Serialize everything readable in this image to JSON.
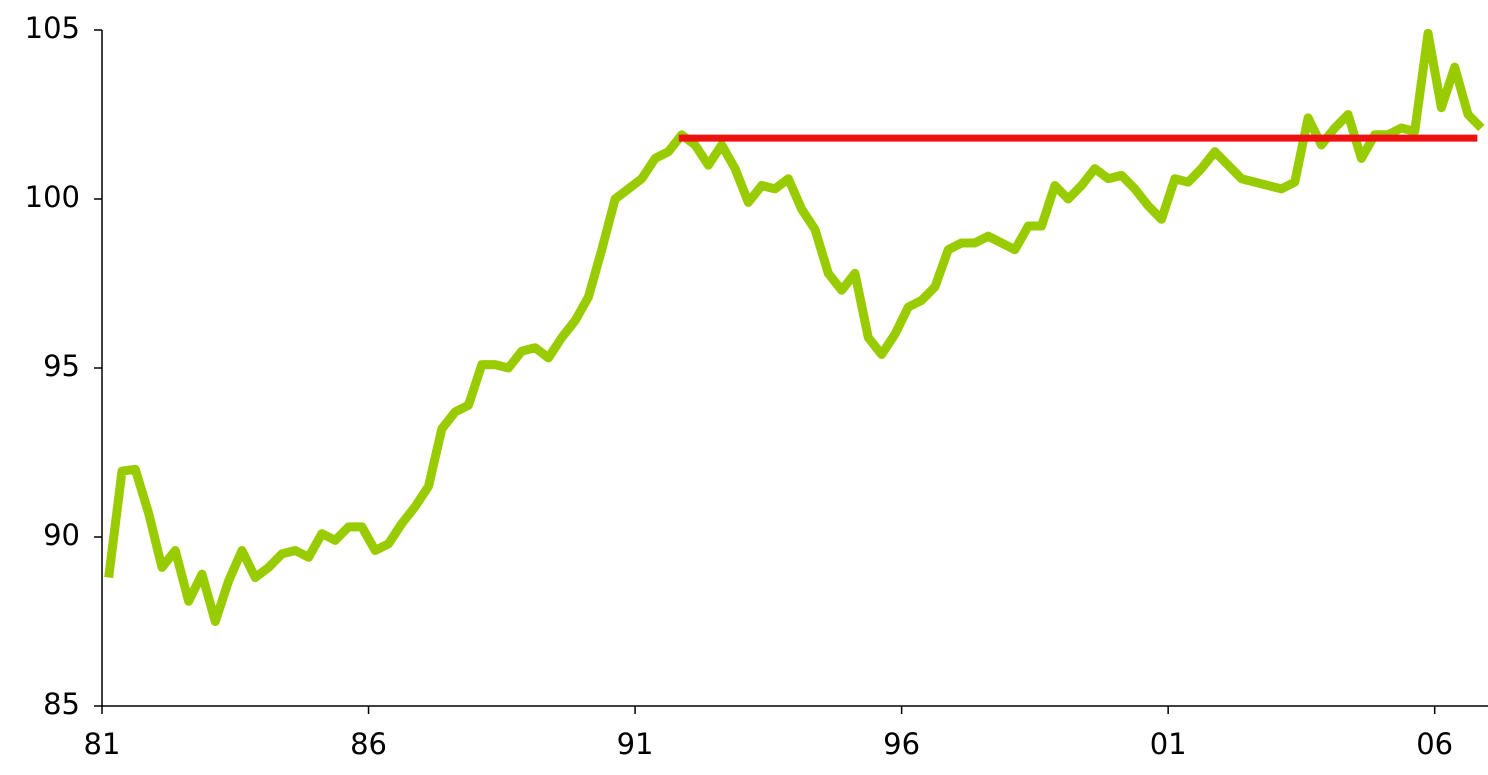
{
  "chart_data": {
    "type": "line",
    "series": [
      {
        "color": "#99cc00",
        "x": [
          81.125,
          81.375,
          81.625,
          81.875,
          82.125,
          82.375,
          82.625,
          82.875,
          83.125,
          83.375,
          83.625,
          83.875,
          84.125,
          84.375,
          84.625,
          84.875,
          85.125,
          85.375,
          85.625,
          85.875,
          86.125,
          86.375,
          86.625,
          86.875,
          87.125,
          87.375,
          87.625,
          87.875,
          88.125,
          88.375,
          88.625,
          88.875,
          89.125,
          89.375,
          89.625,
          89.875,
          90.125,
          90.375,
          90.625,
          90.875,
          91.125,
          91.375,
          91.625,
          91.875,
          92.125,
          92.375,
          92.625,
          92.875,
          93.125,
          93.375,
          93.625,
          93.875,
          94.125,
          94.375,
          94.625,
          94.875,
          95.125,
          95.375,
          95.625,
          95.875,
          96.125,
          96.375,
          96.625,
          96.875,
          97.125,
          97.375,
          97.625,
          97.875,
          98.125,
          98.375,
          98.625,
          98.875,
          99.125,
          99.375,
          99.625,
          99.875,
          100.125,
          100.375,
          100.625,
          100.875,
          101.125,
          101.375,
          101.625,
          101.875,
          102.125,
          102.375,
          102.625,
          102.875,
          103.125,
          103.375,
          103.625,
          103.875,
          104.125,
          104.375,
          104.625,
          104.875,
          105.125,
          105.375,
          105.625,
          105.875,
          106.125,
          106.375,
          106.625,
          106.875
        ],
        "values": [
          88.8,
          91.95,
          92.0,
          90.7,
          89.1,
          89.6,
          88.1,
          88.9,
          87.5,
          88.7,
          89.6,
          88.8,
          89.1,
          89.5,
          89.6,
          89.4,
          90.1,
          89.9,
          90.3,
          90.3,
          89.6,
          89.8,
          90.4,
          90.9,
          91.5,
          93.2,
          93.7,
          93.9,
          95.1,
          95.1,
          95.0,
          95.5,
          95.6,
          95.3,
          95.9,
          96.4,
          97.1,
          98.5,
          100.0,
          100.3,
          100.6,
          101.2,
          101.4,
          101.9,
          101.6,
          101.0,
          101.6,
          100.9,
          99.9,
          100.4,
          100.3,
          100.6,
          99.7,
          99.1,
          97.8,
          97.3,
          97.8,
          95.9,
          95.4,
          96.0,
          96.8,
          97.0,
          97.4,
          98.5,
          98.7,
          98.7,
          98.9,
          98.7,
          98.5,
          99.2,
          99.2,
          100.4,
          100.0,
          100.4,
          100.9,
          100.6,
          100.7,
          100.3,
          99.8,
          99.4,
          100.6,
          100.5,
          100.9,
          101.4,
          101.0,
          100.6,
          100.5,
          100.4,
          100.3,
          100.5,
          102.4,
          101.6,
          102.1,
          102.5,
          101.2,
          101.9,
          101.9,
          102.1,
          102.0,
          104.9,
          102.7,
          103.9,
          102.5,
          102.1
        ]
      },
      {
        "color": "#ee1111",
        "x": [
          91.82,
          106.8
        ],
        "values": [
          101.8,
          101.8
        ]
      }
    ],
    "xlim": [
      81,
      107
    ],
    "xticks": [
      81,
      86,
      91,
      96,
      {
        "value": 101,
        "label": "01"
      },
      {
        "value": 106,
        "label": "06"
      }
    ],
    "ylim": [
      85,
      105
    ],
    "yticks": [
      85,
      90,
      95,
      100,
      105
    ]
  }
}
